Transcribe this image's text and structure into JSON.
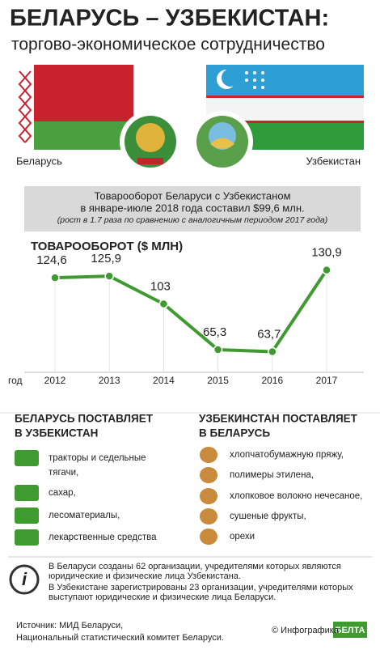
{
  "header": {
    "title": "БЕЛАРУСЬ – УЗБЕКИСТАН:",
    "subtitle": "торгово-экономическое сотрудничество"
  },
  "flags": {
    "left": "Беларусь",
    "right": "Узбекистан"
  },
  "summary": {
    "lines": [
      "Товарооборот Беларуси с Узбекистаном",
      "в январе-июле 2018 года составил $99,6 млн."
    ],
    "note": "(рост в 1.7 раза по сравнению с аналогичным периодом 2017 года)"
  },
  "chart_data": {
    "type": "line",
    "title": "ТОВАРООБОРОТ ($ МЛН)",
    "x_label": "год",
    "categories": [
      "2012",
      "2013",
      "2014",
      "2015",
      "2016",
      "2017"
    ],
    "values": [
      124.6,
      125.9,
      103,
      65.3,
      63.7,
      130.9
    ],
    "value_labels": [
      "124,6",
      "125,9",
      "103",
      "65,3",
      "63,7",
      "130,9"
    ],
    "color": "#3f9a2f",
    "ylim": [
      50,
      150
    ]
  },
  "exports": {
    "title": [
      "БЕЛАРУСЬ ПОСТАВЛЯЕТ",
      "В УЗБЕКИСТАН"
    ],
    "items": [
      [
        "тракторы и седельные",
        "тягачи,"
      ],
      [
        "сахар,"
      ],
      [
        "лесоматериалы,"
      ],
      [
        "лекарственные средства"
      ]
    ]
  },
  "imports": {
    "title": [
      "УЗБЕКИНСТАН ПОСТАВЛЯЕТ",
      "В БЕЛАРУСЬ"
    ],
    "items": [
      [
        "хлопчатобумажную пряжу,"
      ],
      [
        "полимеры этилена,"
      ],
      [
        "хлопковое волокно нечесаное,"
      ],
      [
        "сушеные фрукты,"
      ],
      [
        "орехи"
      ]
    ]
  },
  "info": [
    [
      "В Беларуси созданы 62 организации, учредителями которых являются",
      "юридические и физические лица Узбекистана."
    ],
    [
      "В Узбекистане зарегистрированы 23 организации, учредителями которых",
      "выступают юридические и физические лица Беларуси."
    ]
  ],
  "footer": {
    "source": [
      "Источник: МИД Беларуси,",
      "Национальный статистический комитет Беларуси."
    ],
    "credit": "© Инфографика",
    "logo": "БЕЛТА"
  }
}
